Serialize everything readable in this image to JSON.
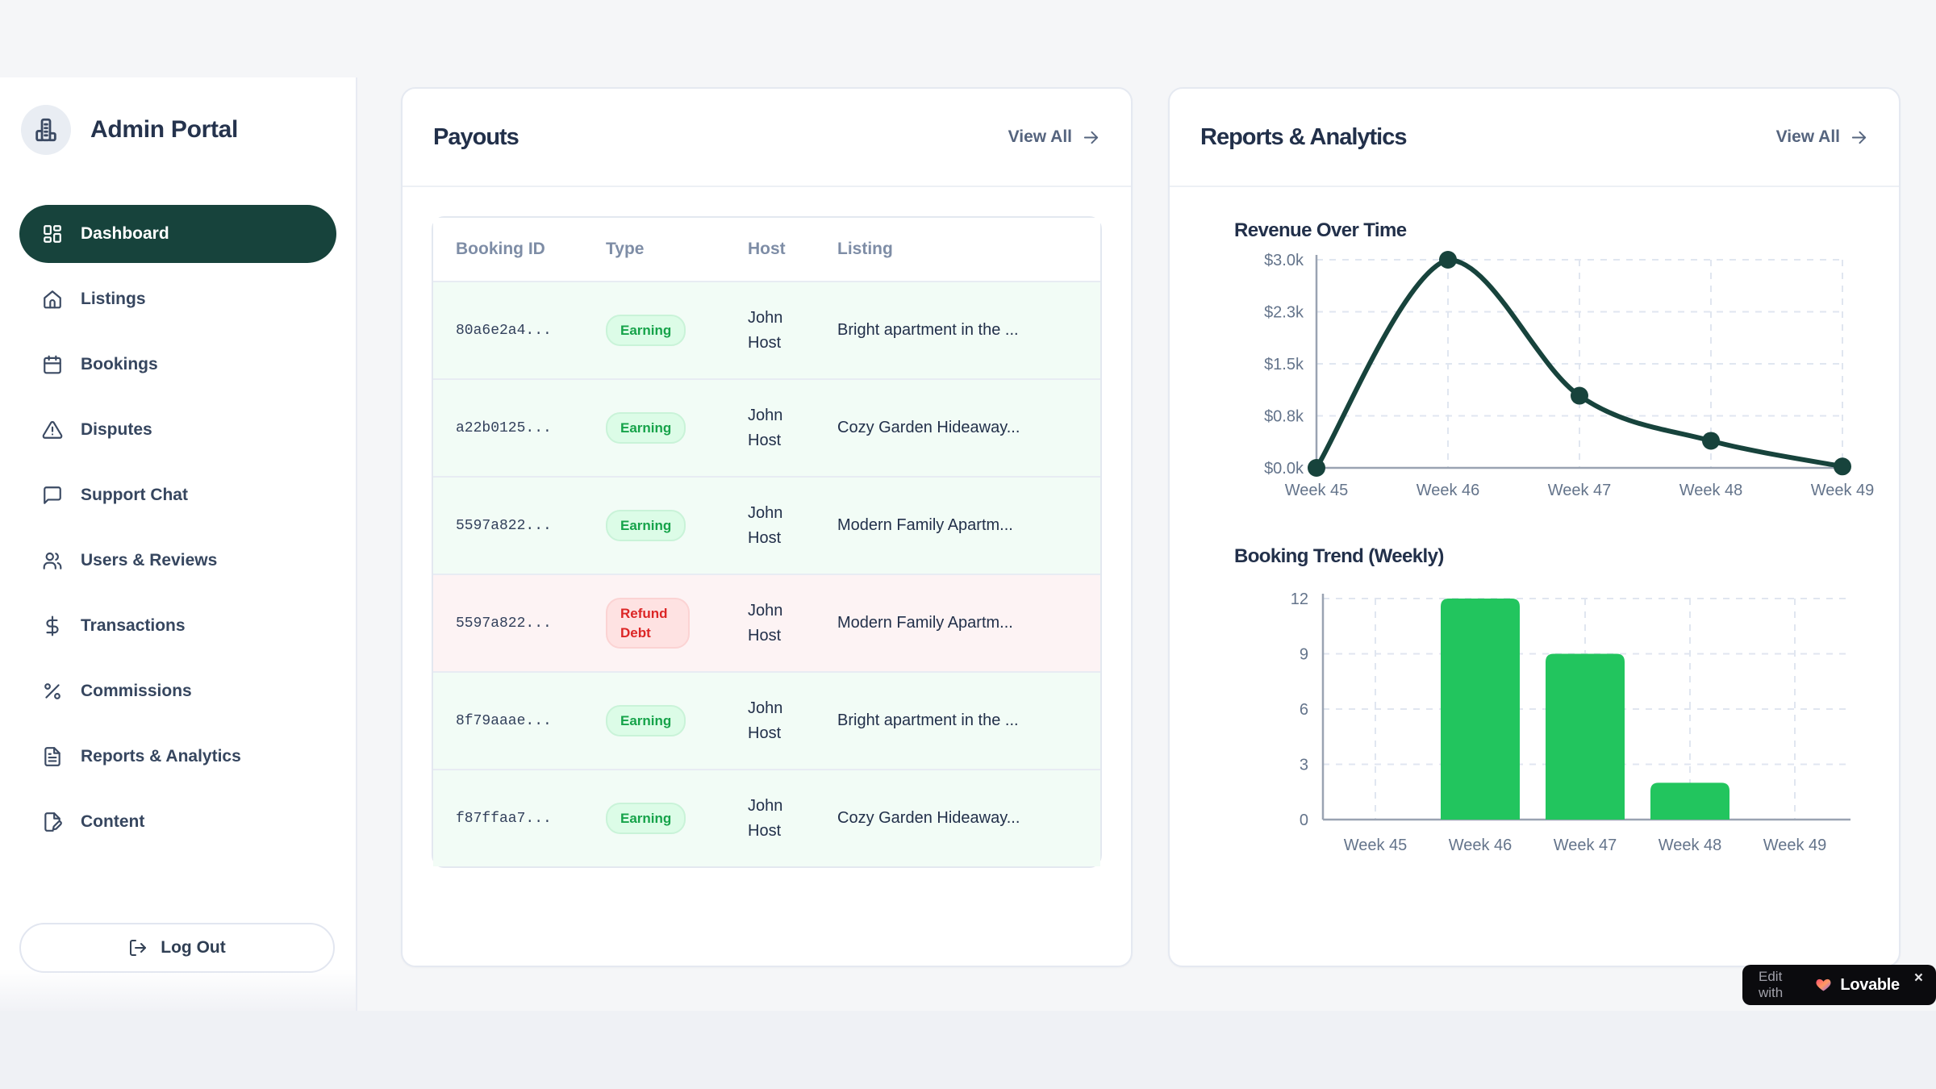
{
  "colors": {
    "accent": "#17433c",
    "line": "#17433c",
    "bar_green": "#22c55e",
    "earning_bg": "#dcfce7",
    "earning_text": "#16a34a",
    "refund_bg": "#fee2e2",
    "refund_text": "#dc2626"
  },
  "sidebar": {
    "brand": "Admin Portal",
    "items": [
      {
        "label": "Dashboard",
        "icon": "layout-dashboard",
        "active": true
      },
      {
        "label": "Listings",
        "icon": "home",
        "active": false
      },
      {
        "label": "Bookings",
        "icon": "calendar",
        "active": false
      },
      {
        "label": "Disputes",
        "icon": "alert-triangle",
        "active": false
      },
      {
        "label": "Support Chat",
        "icon": "message-square",
        "active": false
      },
      {
        "label": "Users & Reviews",
        "icon": "users",
        "active": false
      },
      {
        "label": "Transactions",
        "icon": "dollar-sign",
        "active": false
      },
      {
        "label": "Commissions",
        "icon": "percent",
        "active": false
      },
      {
        "label": "Reports & Analytics",
        "icon": "file-text",
        "active": false
      },
      {
        "label": "Content",
        "icon": "file-pen",
        "active": false
      }
    ],
    "logout_label": "Log Out"
  },
  "payouts": {
    "title": "Payouts",
    "view_all": "View All",
    "columns": [
      "Booking ID",
      "Type",
      "Host",
      "Listing"
    ],
    "rows": [
      {
        "id": "80a6e2a4...",
        "type": "Earning",
        "kind": "earning",
        "host": "John Host",
        "listing": "Bright apartment in the ..."
      },
      {
        "id": "a22b0125...",
        "type": "Earning",
        "kind": "earning",
        "host": "John Host",
        "listing": "Cozy Garden Hideaway..."
      },
      {
        "id": "5597a822...",
        "type": "Earning",
        "kind": "earning",
        "host": "John Host",
        "listing": "Modern Family Apartm..."
      },
      {
        "id": "5597a822...",
        "type": "Refund Debt",
        "kind": "refund",
        "host": "John Host",
        "listing": "Modern Family Apartm..."
      },
      {
        "id": "8f79aaae...",
        "type": "Earning",
        "kind": "earning",
        "host": "John Host",
        "listing": "Bright apartment in the ..."
      },
      {
        "id": "f87ffaa7...",
        "type": "Earning",
        "kind": "earning",
        "host": "John Host",
        "listing": "Cozy Garden Hideaway..."
      }
    ]
  },
  "reports": {
    "title": "Reports & Analytics",
    "view_all": "View All"
  },
  "chart_data": [
    {
      "type": "line",
      "title": "Revenue Over Time",
      "categories": [
        "Week 45",
        "Week 46",
        "Week 47",
        "Week 48",
        "Week 49"
      ],
      "values": [
        0,
        3000,
        1040,
        390,
        20
      ],
      "ylim": [
        0,
        3000
      ],
      "yticks": [
        {
          "value": 0,
          "label": "$0.0k"
        },
        {
          "value": 750,
          "label": "$0.8k"
        },
        {
          "value": 1500,
          "label": "$1.5k"
        },
        {
          "value": 2250,
          "label": "$2.3k"
        },
        {
          "value": 3000,
          "label": "$3.0k"
        }
      ],
      "grid": "dashed",
      "legend": "none"
    },
    {
      "type": "bar",
      "title": "Booking Trend (Weekly)",
      "categories": [
        "Week 45",
        "Week 46",
        "Week 47",
        "Week 48",
        "Week 49"
      ],
      "values": [
        0,
        12,
        9,
        2,
        0
      ],
      "ylim": [
        0,
        12
      ],
      "yticks": [
        {
          "value": 0,
          "label": "0"
        },
        {
          "value": 3,
          "label": "3"
        },
        {
          "value": 6,
          "label": "6"
        },
        {
          "value": 9,
          "label": "9"
        },
        {
          "value": 12,
          "label": "12"
        }
      ],
      "grid": "dashed",
      "legend": "none"
    }
  ],
  "lovable": {
    "prefix": "Edit with",
    "brand": "Lovable",
    "close": "×"
  }
}
